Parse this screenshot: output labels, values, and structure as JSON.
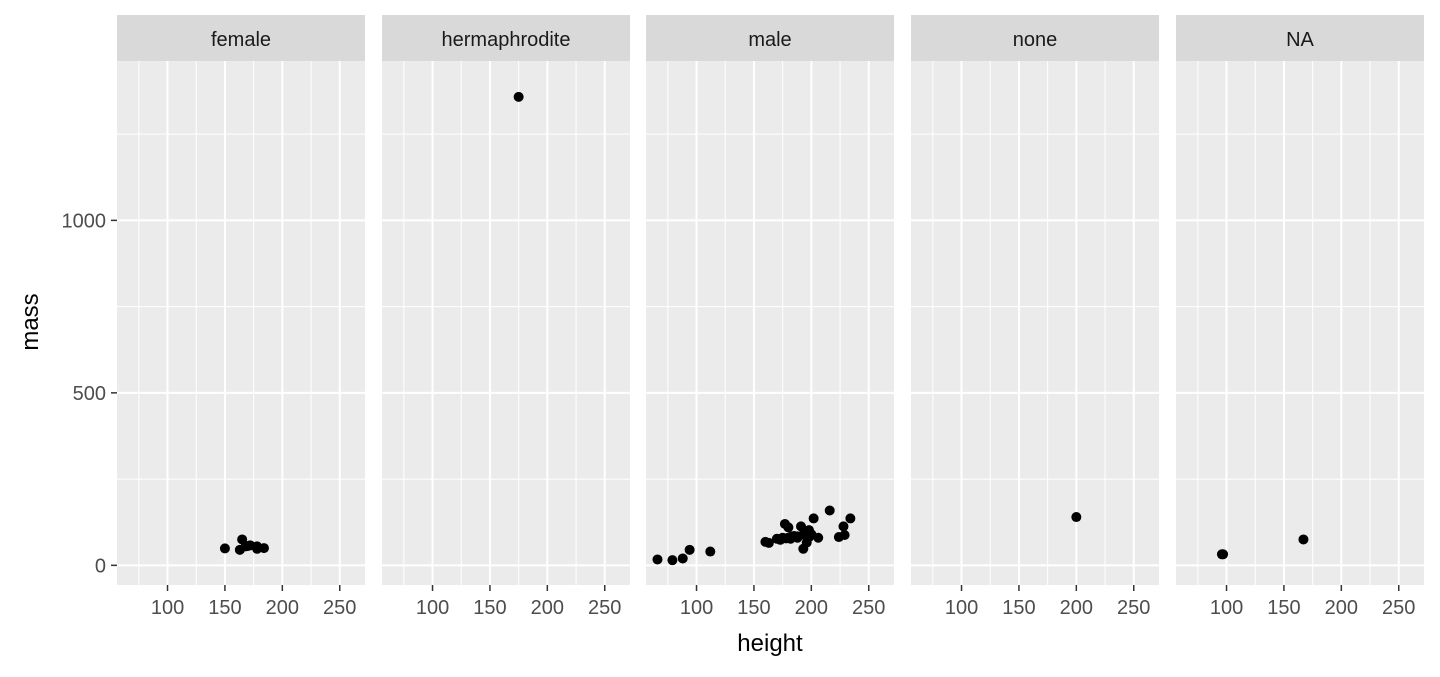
{
  "chart_data": {
    "type": "scatter",
    "facet_by": "sex",
    "xlabel": "height",
    "ylabel": "mass",
    "xlim": [
      56,
      272
    ],
    "ylim": [
      -57,
      1462
    ],
    "x_ticks": [
      100,
      150,
      200,
      250
    ],
    "y_ticks": [
      0,
      500,
      1000
    ],
    "grid": true,
    "colors": {
      "panel_background": "#EBEBEB",
      "strip_background": "#D9D9D9",
      "grid_line": "#FFFFFF",
      "point": "#000000",
      "axis_text": "#4D4D4D",
      "strip_text": "#1A1A1A",
      "title_text": "#000000"
    },
    "panels": [
      {
        "label": "female",
        "points": [
          {
            "x": 150,
            "y": 49
          },
          {
            "x": 163,
            "y": 45
          },
          {
            "x": 165,
            "y": 75
          },
          {
            "x": 168,
            "y": 55
          },
          {
            "x": 170,
            "y": 56
          },
          {
            "x": 172,
            "y": 58
          },
          {
            "x": 178,
            "y": 55
          },
          {
            "x": 178,
            "y": 48
          },
          {
            "x": 184,
            "y": 50
          }
        ]
      },
      {
        "label": "hermaphrodite",
        "points": [
          {
            "x": 175,
            "y": 1358
          }
        ]
      },
      {
        "label": "male",
        "points": [
          {
            "x": 66,
            "y": 17
          },
          {
            "x": 79,
            "y": 15
          },
          {
            "x": 88,
            "y": 20
          },
          {
            "x": 94,
            "y": 45
          },
          {
            "x": 112,
            "y": 40
          },
          {
            "x": 160,
            "y": 68
          },
          {
            "x": 163,
            "y": 65
          },
          {
            "x": 170,
            "y": 77
          },
          {
            "x": 173,
            "y": 74
          },
          {
            "x": 175,
            "y": 80
          },
          {
            "x": 177,
            "y": 120
          },
          {
            "x": 178,
            "y": 78
          },
          {
            "x": 180,
            "y": 110
          },
          {
            "x": 180,
            "y": 80
          },
          {
            "x": 182,
            "y": 77
          },
          {
            "x": 183,
            "y": 84
          },
          {
            "x": 185,
            "y": 85
          },
          {
            "x": 188,
            "y": 84
          },
          {
            "x": 188,
            "y": 80
          },
          {
            "x": 191,
            "y": 113
          },
          {
            "x": 193,
            "y": 48
          },
          {
            "x": 193,
            "y": 89
          },
          {
            "x": 196,
            "y": 66
          },
          {
            "x": 196,
            "y": 87
          },
          {
            "x": 198,
            "y": 82
          },
          {
            "x": 198,
            "y": 102
          },
          {
            "x": 200,
            "y": 90
          },
          {
            "x": 202,
            "y": 136
          },
          {
            "x": 206,
            "y": 80
          },
          {
            "x": 216,
            "y": 159
          },
          {
            "x": 224,
            "y": 82
          },
          {
            "x": 228,
            "y": 113
          },
          {
            "x": 229,
            "y": 88
          },
          {
            "x": 234,
            "y": 136
          }
        ]
      },
      {
        "label": "none",
        "points": [
          {
            "x": 200,
            "y": 140
          }
        ]
      },
      {
        "label": "NA",
        "points": [
          {
            "x": 96,
            "y": 32
          },
          {
            "x": 97,
            "y": 32
          },
          {
            "x": 167,
            "y": 75
          }
        ]
      }
    ]
  }
}
